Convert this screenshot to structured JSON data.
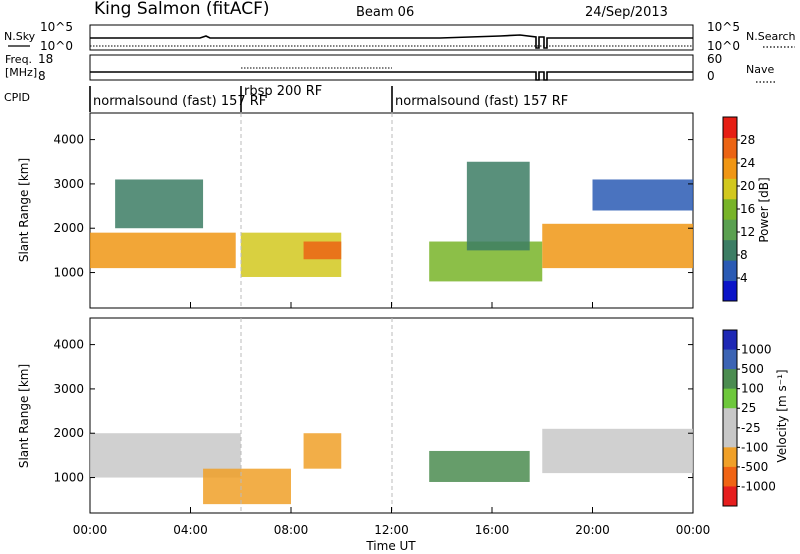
{
  "header": {
    "station": "King Salmon (fitACF)",
    "beam": "Beam 06",
    "date": "24/Sep/2013"
  },
  "left_labels": {
    "nsky": "N.Sky",
    "freq_1": "Freq.",
    "freq_2": "[MHz]",
    "cpid": "CPID"
  },
  "right_labels": {
    "nsearch": "N.Search",
    "nave": "Nave"
  },
  "cpid_segments": [
    {
      "label": "normalsound (fast) 157 RF"
    },
    {
      "label": "rbsp 200 RF"
    },
    {
      "label": "normalsound (fast) 157 RF"
    }
  ],
  "colors": {
    "power_scale": [
      "#0a14c8",
      "#2a5ab4",
      "#3c7d64",
      "#5aa050",
      "#78b428",
      "#d2c81e",
      "#f09614",
      "#eb6414",
      "#e61e14"
    ],
    "velocity_scale": [
      "#1e28b4",
      "#3c64b4",
      "#4b8c50",
      "#6ec83c",
      "#c8c8c8",
      "#c8c8c8",
      "#f0a028",
      "#f06414",
      "#e61e1e"
    ]
  },
  "chart_data": [
    {
      "type": "line",
      "title": "",
      "ylabel": "N.Sky",
      "y2label": "N.Search",
      "yticks_left": [
        "10^5",
        "10^0"
      ],
      "yticks_right": [
        "10^5",
        "10^0"
      ],
      "x": [
        "00:00",
        "04:00",
        "08:00",
        "12:00",
        "16:00",
        "20:00",
        "00:00"
      ],
      "series": [
        {
          "name": "N.Sky",
          "level": "about 10^1, nearly constant, dropout near 17:45-18:00"
        },
        {
          "name": "N.Search",
          "level": "about 10^0, dotted, nearly constant"
        }
      ]
    },
    {
      "type": "line",
      "ylabel": "Freq. [MHz]",
      "y2label": "Nave",
      "yticks_left": [
        "8",
        "18"
      ],
      "yticks_right": [
        "0",
        "60"
      ],
      "series": [
        {
          "name": "Freq. [MHz]",
          "points": [
            [
              "00:00",
              10.5
            ],
            [
              "18:00",
              10.5
            ],
            [
              "23:59",
              10.5
            ]
          ]
        },
        {
          "name": "Nave",
          "points": [
            [
              "06:00",
              31
            ],
            [
              "12:00",
              31
            ]
          ]
        }
      ]
    },
    {
      "type": "heatmap",
      "panel": "power",
      "xlabel": "",
      "ylabel": "Slant Range [km]",
      "xlim": [
        "00:00",
        "24:00"
      ],
      "ylim": [
        200,
        4600
      ],
      "yticks": [
        1000,
        2000,
        3000,
        4000
      ],
      "colorbar": {
        "label": "Power [dB]",
        "ticks": [
          4,
          8,
          12,
          16,
          20,
          24,
          28
        ],
        "range": [
          0,
          32
        ]
      },
      "echo_regions": [
        {
          "t0": 0.0,
          "t1": 5.8,
          "range_start": 1100,
          "range_end": 1900,
          "power_db": 24
        },
        {
          "t0": 1.0,
          "t1": 4.5,
          "range_start": 2000,
          "range_end": 3100,
          "power_db": 8
        },
        {
          "t0": 6.0,
          "t1": 10.0,
          "range_start": 900,
          "range_end": 1900,
          "power_db": 18
        },
        {
          "t0": 8.5,
          "t1": 10.0,
          "range_start": 1300,
          "range_end": 1700,
          "power_db": 26
        },
        {
          "t0": 13.5,
          "t1": 18.0,
          "range_start": 800,
          "range_end": 1700,
          "power_db": 16
        },
        {
          "t0": 15.0,
          "t1": 17.5,
          "range_start": 1500,
          "range_end": 3500,
          "power_db": 10
        },
        {
          "t0": 18.0,
          "t1": 24.0,
          "range_start": 1100,
          "range_end": 2100,
          "power_db": 22
        },
        {
          "t0": 20.0,
          "t1": 24.0,
          "range_start": 2400,
          "range_end": 3100,
          "power_db": 6
        }
      ]
    },
    {
      "type": "heatmap",
      "panel": "velocity",
      "xlabel": "Time UT",
      "ylabel": "Slant Range [km]",
      "xlim": [
        "00:00",
        "24:00"
      ],
      "ylim": [
        200,
        4600
      ],
      "yticks": [
        1000,
        2000,
        3000,
        4000
      ],
      "xticks": [
        "00:00",
        "04:00",
        "08:00",
        "12:00",
        "16:00",
        "20:00",
        "00:00"
      ],
      "colorbar": {
        "label": "Velocity [m s⁻¹]",
        "ticks": [
          1000,
          500,
          100,
          25,
          -25,
          -100,
          -500,
          -1000
        ]
      },
      "echo_regions": [
        {
          "t0": 0.0,
          "t1": 6.0,
          "range_start": 1000,
          "range_end": 2000,
          "velocity": 0
        },
        {
          "t0": 4.5,
          "t1": 8.0,
          "range_start": 400,
          "range_end": 1200,
          "velocity": -300
        },
        {
          "t0": 8.5,
          "t1": 10.0,
          "range_start": 1200,
          "range_end": 2000,
          "velocity": -500
        },
        {
          "t0": 13.5,
          "t1": 17.5,
          "range_start": 900,
          "range_end": 1600,
          "velocity": 200
        },
        {
          "t0": 18.0,
          "t1": 24.0,
          "range_start": 1100,
          "range_end": 2100,
          "velocity": 0
        }
      ]
    }
  ]
}
